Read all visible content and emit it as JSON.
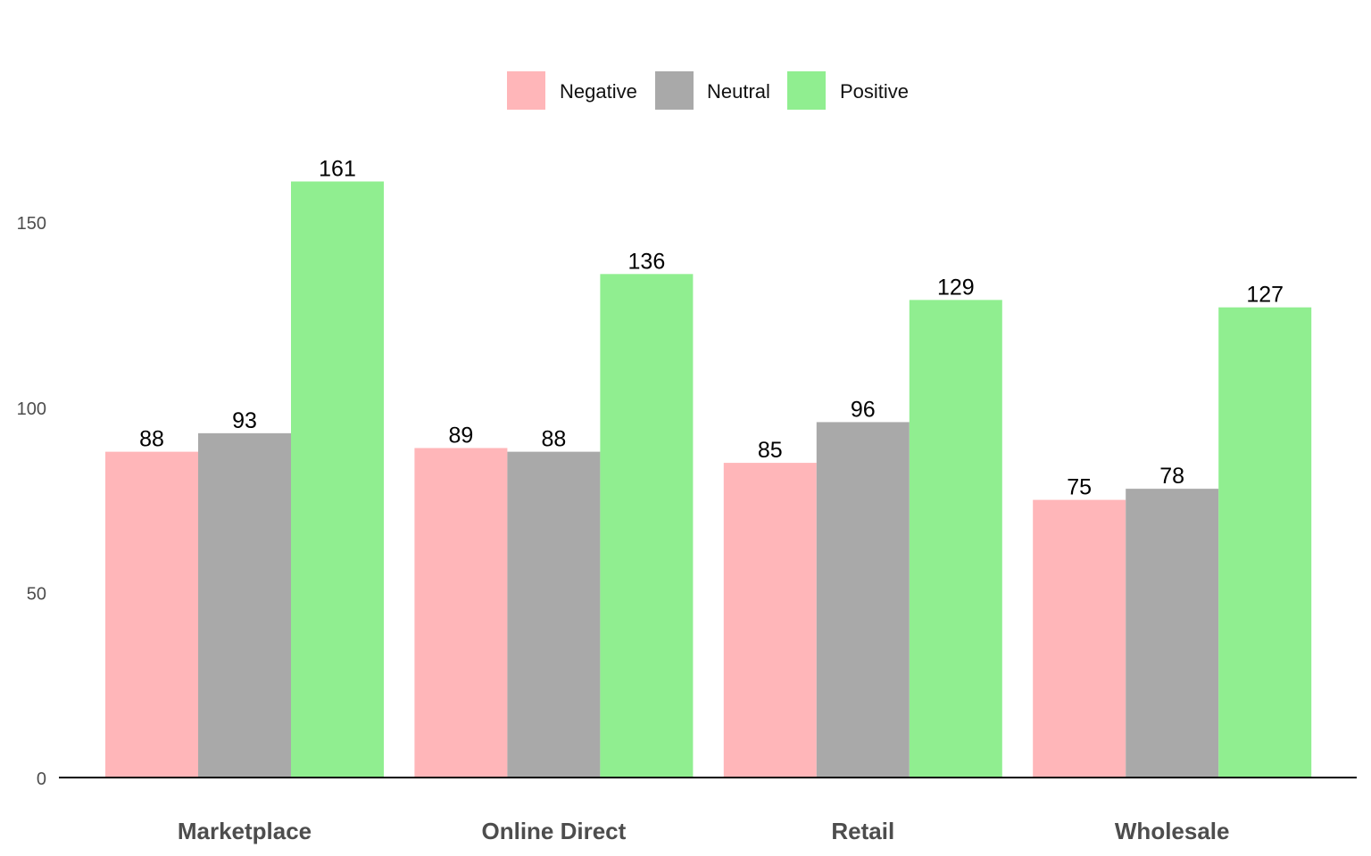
{
  "chart_data": {
    "type": "bar",
    "title": "",
    "xlabel": "",
    "ylabel": "",
    "categories": [
      "Marketplace",
      "Online Direct",
      "Retail",
      "Wholesale"
    ],
    "series": [
      {
        "name": "Negative",
        "color": "#ffb6b9",
        "values": [
          88,
          89,
          85,
          75
        ]
      },
      {
        "name": "Neutral",
        "color": "#a9a9a9",
        "values": [
          93,
          88,
          96,
          78
        ]
      },
      {
        "name": "Positive",
        "color": "#90ee90",
        "values": [
          161,
          136,
          129,
          127
        ]
      }
    ],
    "yticks": [
      0,
      50,
      100,
      150
    ],
    "ylim": [
      0,
      161
    ],
    "legend_position": "top-center",
    "grid": false,
    "data_labels": true
  }
}
